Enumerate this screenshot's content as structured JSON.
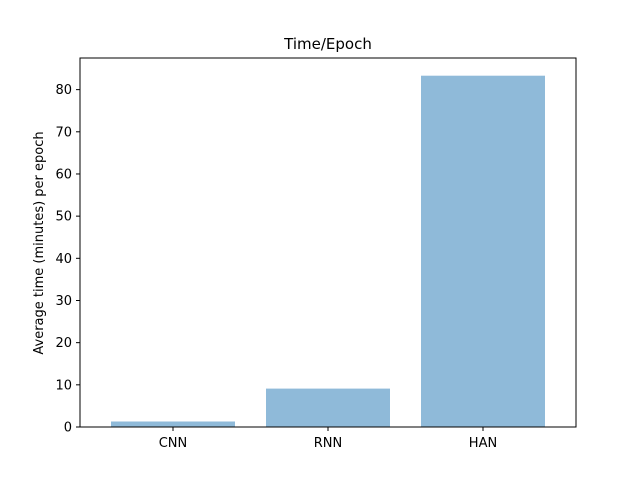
{
  "chart_data": {
    "type": "bar",
    "title": "Time/Epoch",
    "xlabel": "",
    "ylabel": "Average time (minutes) per epoch",
    "categories": [
      "CNN",
      "RNN",
      "HAN"
    ],
    "values": [
      1.3,
      9.1,
      83.3
    ],
    "ylim": [
      0,
      87.5
    ],
    "yticks": [
      0,
      10,
      20,
      30,
      40,
      50,
      60,
      70,
      80
    ],
    "grid": false,
    "bar_color": "#8fbad9",
    "axis_color": "#000000"
  }
}
